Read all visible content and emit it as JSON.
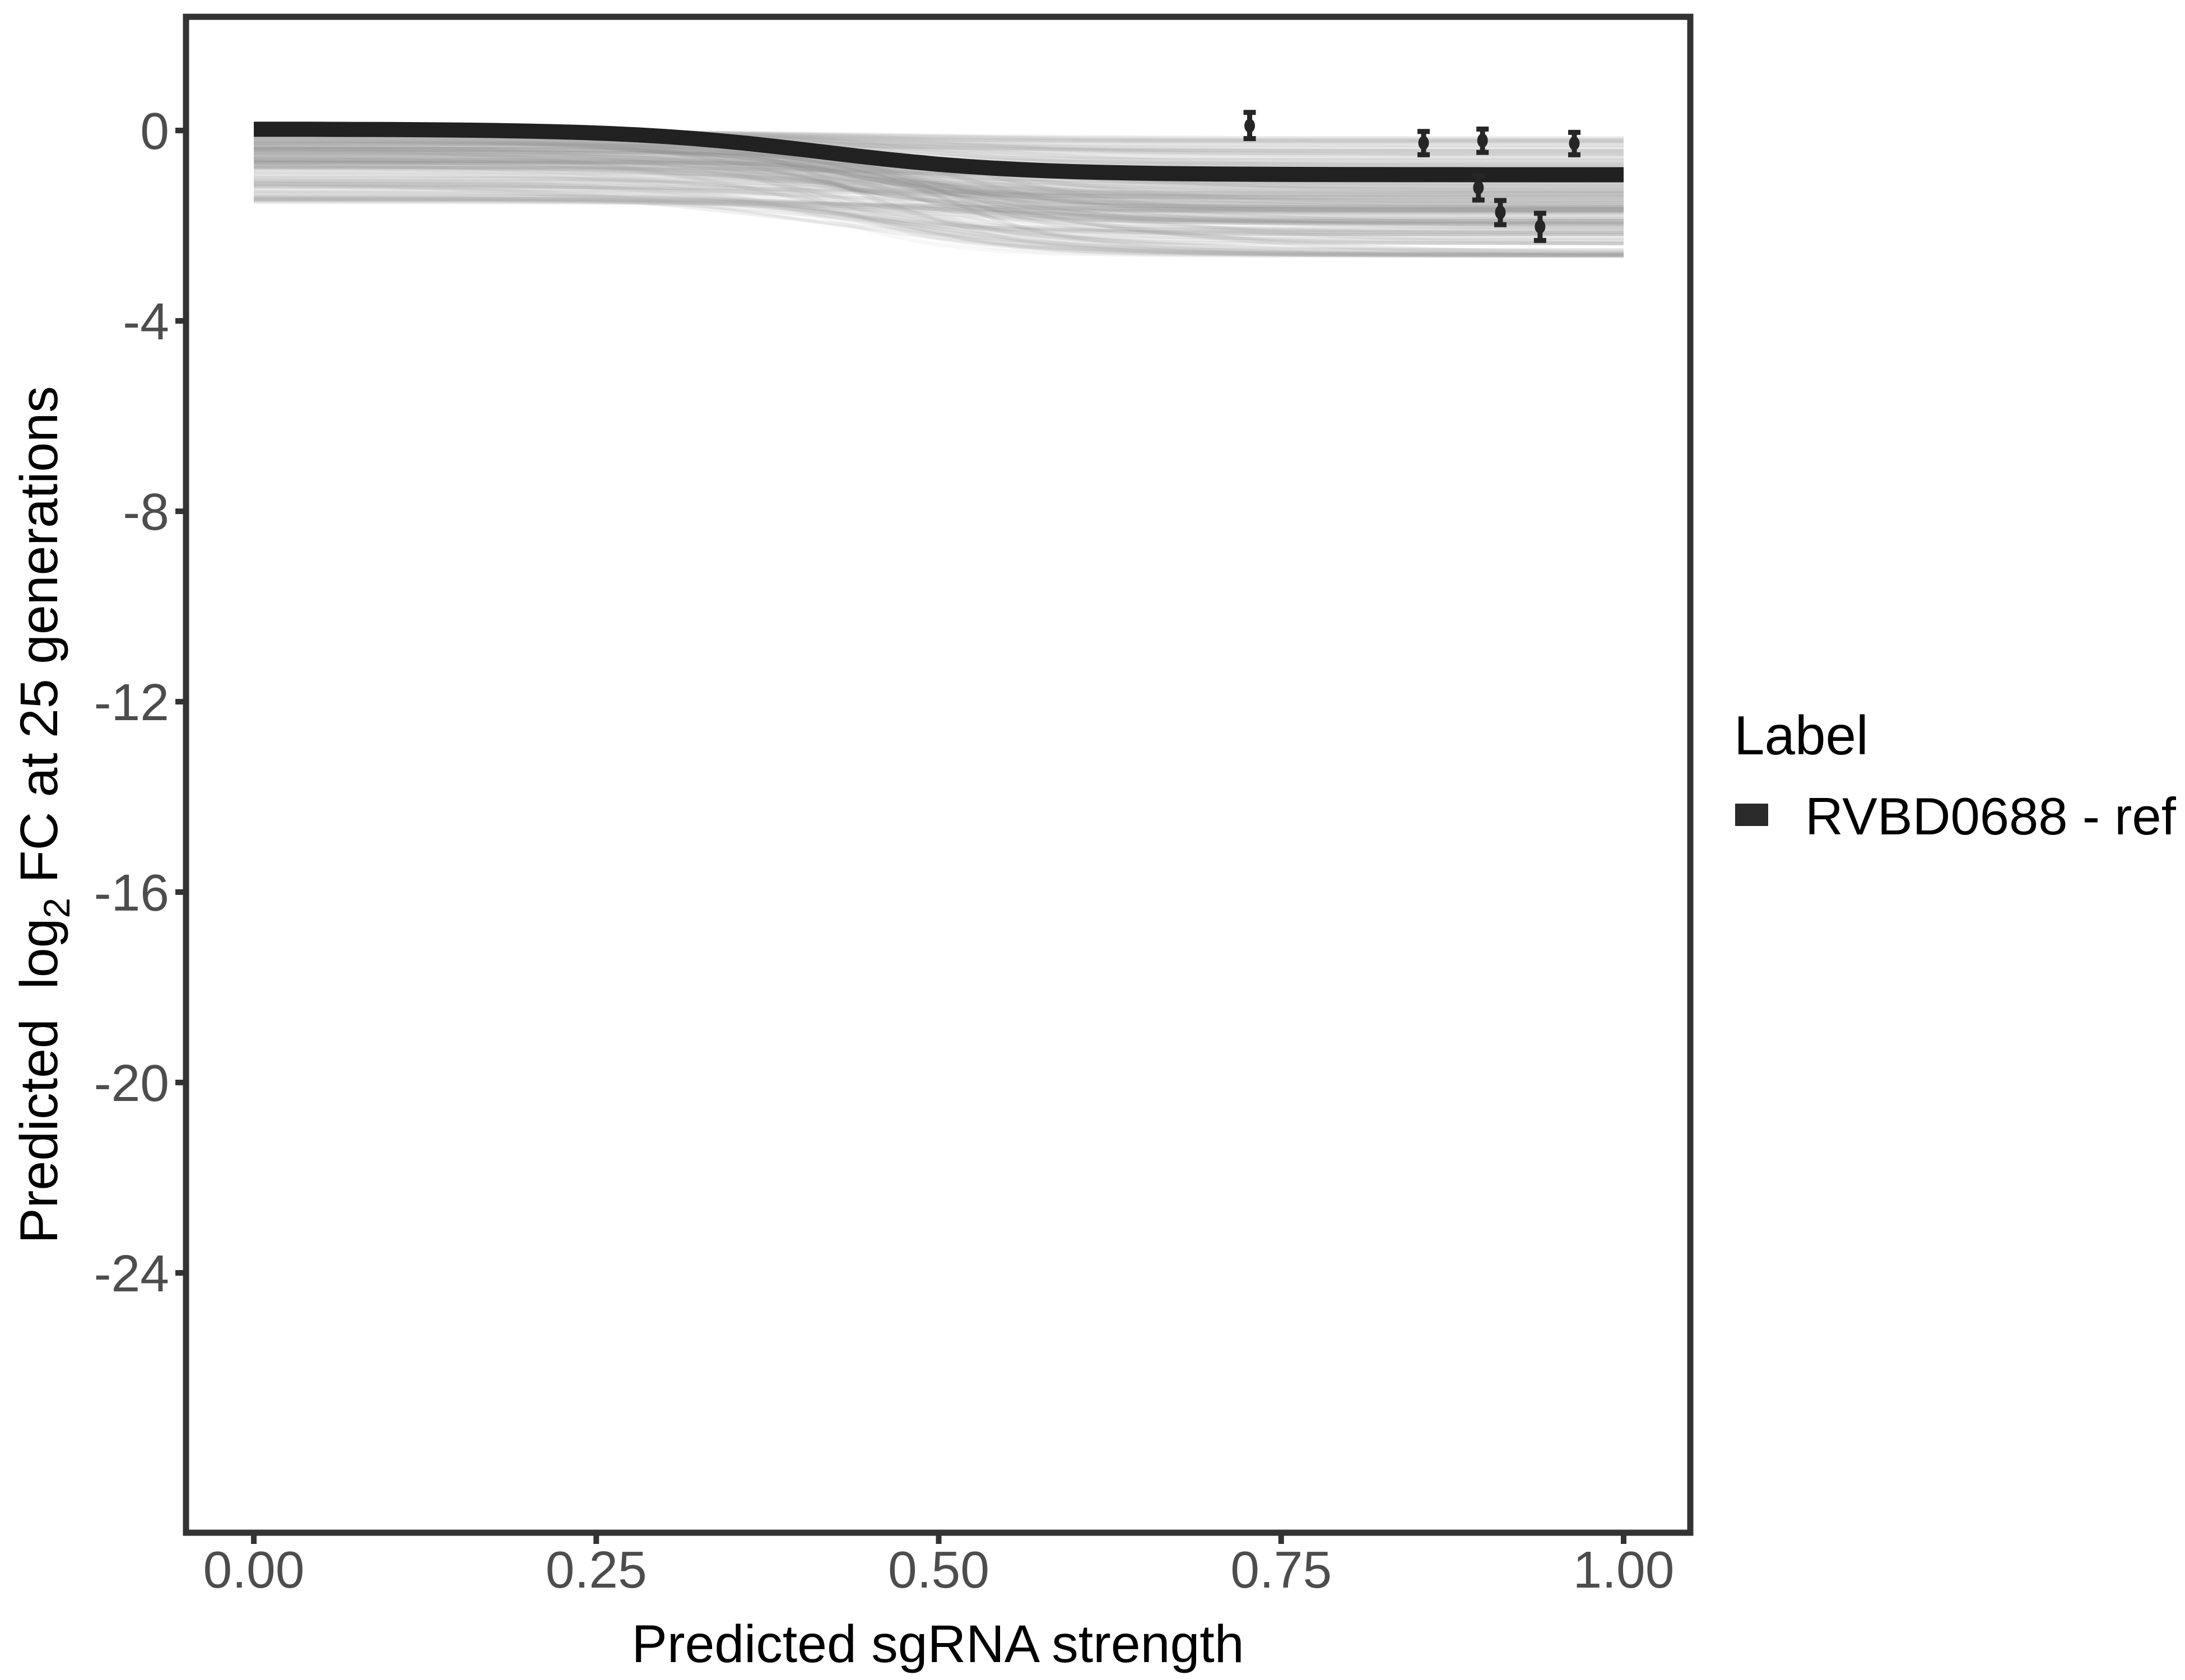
{
  "figure": {
    "background": "#ffffff",
    "panel_border_color": "#333333",
    "tick_color": "#333333",
    "tick_label_color": "#4d4d4d",
    "title_color": "#000000"
  },
  "axes": {
    "x": {
      "title": "Predicted sgRNA strength",
      "tick_labels": [
        "0.00",
        "0.25",
        "0.50",
        "0.75",
        "1.00"
      ],
      "tick_values": [
        0.0,
        0.25,
        0.5,
        0.75,
        1.0
      ]
    },
    "y": {
      "title_pre": "Predicted  log",
      "title_sub": "2",
      "title_post": " FC at 25 generations",
      "title_full": "Predicted log2 FC at 25 generations",
      "tick_labels": [
        "0",
        "-4",
        "-8",
        "-12",
        "-16",
        "-20",
        "-24"
      ],
      "tick_values": [
        0,
        -4,
        -8,
        -12,
        -16,
        -20,
        -24
      ]
    }
  },
  "legend": {
    "title": "Label",
    "entries": [
      {
        "label": "RVBD0688 - ref",
        "color": "#2a2a2a",
        "key_shape": "thick-line-swatch"
      }
    ]
  },
  "chart_data": {
    "type": "line",
    "title": "",
    "xlabel": "Predicted sgRNA strength",
    "ylabel": "Predicted log2 FC at 25 generations",
    "xlim": [
      -0.049,
      1.049
    ],
    "ylim": [
      -29.45,
      2.39
    ],
    "x_ticks": [
      0.0,
      0.25,
      0.5,
      0.75,
      1.0
    ],
    "y_ticks": [
      0,
      -4,
      -8,
      -12,
      -16,
      -20,
      -24
    ],
    "grid": false,
    "legend_position": "right",
    "ref_series": {
      "name": "RVBD0688 - ref",
      "color": "#212121",
      "stroke_width": 27,
      "sigmoid": {
        "start": 0.03,
        "end": -0.93,
        "midpoint": 0.415,
        "scale": 0.07
      },
      "x": [
        0.0,
        0.1,
        0.2,
        0.3,
        0.4,
        0.5,
        0.6,
        0.7,
        0.8,
        0.9,
        1.0
      ],
      "y": [
        0.03,
        0.02,
        -0.01,
        -0.13,
        -0.4,
        -0.71,
        -0.87,
        -0.91,
        -0.93,
        -0.93,
        -0.93
      ]
    },
    "pointranges": {
      "color": "#262626",
      "points": [
        {
          "x": 0.727,
          "y": 0.1,
          "ymin": -0.17,
          "ymax": 0.38
        },
        {
          "x": 0.854,
          "y": -0.26,
          "ymin": -0.51,
          "ymax": -0.02
        },
        {
          "x": 0.897,
          "y": -0.21,
          "ymin": -0.46,
          "ymax": 0.03
        },
        {
          "x": 0.964,
          "y": -0.27,
          "ymin": -0.51,
          "ymax": -0.04
        },
        {
          "x": 0.894,
          "y": -1.2,
          "ymin": -1.46,
          "ymax": -0.95
        },
        {
          "x": 0.91,
          "y": -1.72,
          "ymin": -1.98,
          "ymax": -1.47
        },
        {
          "x": 0.939,
          "y": -2.02,
          "ymin": -2.31,
          "ymax": -1.74
        }
      ]
    },
    "ensemble": {
      "description": "translucent grey sigmoid posterior-draw curves spanning 0 to about -2.6",
      "n": 170,
      "n_strands": 12,
      "seed": 11,
      "x_span": [
        0,
        1
      ],
      "value_floor": -2.62,
      "start": {
        "base": -0.03,
        "spread": 1.5,
        "pow": 2.2
      },
      "drop": {
        "base": 0.12,
        "spread": 2.3,
        "pow": 1.6
      },
      "mid": {
        "min": 0.38,
        "range": 0.16
      },
      "scale": {
        "min": 0.045,
        "range": 0.075
      },
      "alpha": {
        "min": 0.045,
        "range": 0.17
      },
      "width": {
        "min": 5,
        "range": 5
      },
      "grey": {
        "min": 150,
        "range": 40
      },
      "strand": {
        "start_base": -0.25,
        "start_spread": 0.45,
        "drop_base": 1.0,
        "drop_spread": 0.9,
        "mid_min": 0.42,
        "mid_range": 0.1,
        "scale_min": 0.028,
        "scale_range": 0.022,
        "alpha_min": 0.1,
        "alpha_range": 0.08,
        "width_min": 6,
        "width_range": 3,
        "grey": 132
      }
    }
  }
}
